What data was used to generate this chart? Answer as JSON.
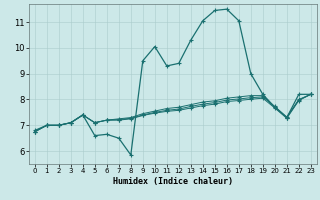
{
  "xlabel": "Humidex (Indice chaleur)",
  "background_color": "#cce8e8",
  "grid_color": "#aacccc",
  "line_color": "#1a7070",
  "xlim": [
    -0.5,
    23.5
  ],
  "ylim": [
    5.5,
    11.7
  ],
  "xticks": [
    0,
    1,
    2,
    3,
    4,
    5,
    6,
    7,
    8,
    9,
    10,
    11,
    12,
    13,
    14,
    15,
    16,
    17,
    18,
    19,
    20,
    21,
    22,
    23
  ],
  "yticks": [
    6,
    7,
    8,
    9,
    10,
    11
  ],
  "series": [
    [
      6.8,
      7.0,
      7.0,
      7.1,
      7.4,
      6.6,
      6.65,
      6.5,
      5.85,
      9.5,
      10.05,
      9.3,
      9.4,
      10.3,
      11.05,
      11.45,
      11.5,
      11.05,
      9.0,
      8.2,
      7.7,
      7.3,
      8.2,
      8.2
    ],
    [
      6.75,
      7.0,
      7.0,
      7.1,
      7.4,
      7.1,
      7.2,
      7.25,
      7.3,
      7.45,
      7.55,
      7.65,
      7.7,
      7.8,
      7.9,
      7.95,
      8.05,
      8.1,
      8.15,
      8.15,
      7.7,
      7.3,
      8.0,
      8.2
    ],
    [
      6.75,
      7.0,
      7.0,
      7.1,
      7.4,
      7.1,
      7.2,
      7.22,
      7.27,
      7.4,
      7.5,
      7.58,
      7.63,
      7.73,
      7.82,
      7.88,
      7.98,
      8.02,
      8.07,
      8.1,
      7.73,
      7.32,
      7.98,
      8.2
    ],
    [
      6.75,
      7.0,
      7.0,
      7.1,
      7.4,
      7.1,
      7.2,
      7.2,
      7.25,
      7.38,
      7.47,
      7.54,
      7.58,
      7.67,
      7.76,
      7.82,
      7.92,
      7.96,
      8.01,
      8.05,
      7.67,
      7.27,
      7.96,
      8.2
    ]
  ]
}
